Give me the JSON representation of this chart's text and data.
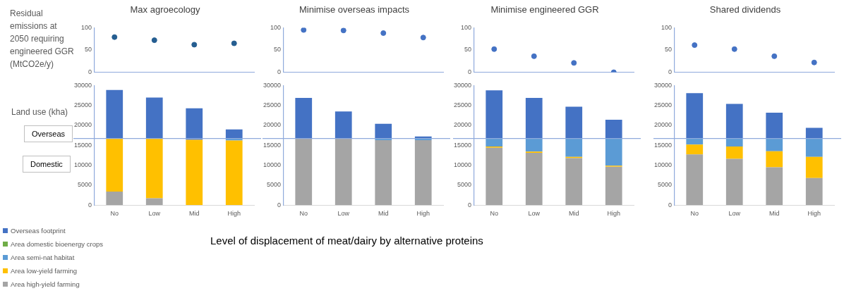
{
  "chart_data": [
    {
      "type": "scatter",
      "title": "Max agroecology",
      "ylabel": "Residual emissions at 2050 requiring engineered GGR (MtCO2e/y)",
      "categories": [
        null,
        null,
        null,
        null
      ],
      "series": [
        {
          "color": "#255e91",
          "values": [
            79,
            72,
            62,
            65
          ]
        }
      ],
      "ylim": [
        0,
        100
      ],
      "yticks": [
        0,
        50,
        100
      ],
      "marker": "circle",
      "tick_labels": "y"
    },
    {
      "type": "scatter",
      "title": "Minimise overseas impacts",
      "categories": [
        null,
        null,
        null,
        null
      ],
      "series": [
        {
          "color": "#4472c4",
          "values": [
            95,
            94,
            88,
            78
          ]
        }
      ],
      "ylim": [
        0,
        100
      ],
      "yticks": [
        0,
        50,
        100
      ],
      "marker": "circle",
      "tick_labels": "y"
    },
    {
      "type": "scatter",
      "title": "Minimise engineered GGR",
      "categories": [
        null,
        null,
        null,
        null
      ],
      "series": [
        {
          "color": "#4472c4",
          "values": [
            52,
            36,
            21,
            0
          ]
        }
      ],
      "ylim": [
        0,
        100
      ],
      "yticks": [
        0,
        50,
        100
      ],
      "marker": "circle",
      "tick_labels": "y"
    },
    {
      "type": "scatter",
      "title": "Shared dividends",
      "categories": [
        null,
        null,
        null,
        null
      ],
      "series": [
        {
          "color": "#4472c4",
          "values": [
            61,
            52,
            36,
            22
          ]
        }
      ],
      "ylim": [
        0,
        100
      ],
      "yticks": [
        0,
        50,
        100
      ],
      "marker": "circle",
      "tick_labels": "y"
    },
    {
      "type": "bar",
      "ylabel": "Land use (kha)",
      "xlabel": "Level of displacement of meat/dairy by alternative proteins",
      "annotations": [
        "Overseas",
        "Domestic"
      ],
      "categories": [
        "No",
        "Low",
        "Mid",
        "High"
      ],
      "stacked": true,
      "legend": "bottom left",
      "ylim": [
        0,
        30000
      ],
      "yticks": [
        0,
        5000,
        10000,
        15000,
        20000,
        25000,
        30000
      ],
      "ref_lines": [
        {
          "axis": "y",
          "value": 16700,
          "color": "#8faadc"
        }
      ],
      "series": [
        {
          "name": "Area high-yield farming",
          "color": "#a5a5a5",
          "values": [
            3400,
            1700,
            0,
            0
          ]
        },
        {
          "name": "Area low-yield farming",
          "color": "#ffc000",
          "values": [
            13300,
            15000,
            16400,
            16200
          ]
        },
        {
          "name": "Area semi-nat habitat",
          "color": "#5b9bd5",
          "values": [
            0,
            0,
            null,
            500
          ]
        },
        {
          "name": "Area domestic bioenergy crops",
          "color": "#70ad47",
          "values": [
            0,
            0,
            0,
            0
          ]
        },
        {
          "name": "Overseas footprint",
          "color": "#4472c4",
          "values": [
            12200,
            10300,
            7900,
            2300
          ]
        }
      ]
    },
    {
      "type": "bar",
      "categories": [
        "No",
        "Low",
        "Mid",
        "High"
      ],
      "stacked": true,
      "ylim": [
        0,
        30000
      ],
      "yticks": [
        0,
        5000,
        10000,
        15000,
        20000,
        25000,
        30000
      ],
      "ref_lines": [
        {
          "axis": "y",
          "value": 16700,
          "color": "#8faadc"
        }
      ],
      "series": [
        {
          "color": "#a5a5a5",
          "values": [
            16700,
            16700,
            16300,
            16300
          ]
        },
        {
          "color": "#ffc000",
          "values": [
            0,
            0,
            0,
            0
          ]
        },
        {
          "color": "#5b9bd5",
          "values": [
            0,
            0,
            400,
            400
          ]
        },
        {
          "color": "#70ad47",
          "values": [
            0,
            0,
            0,
            0
          ]
        },
        {
          "color": "#4472c4",
          "values": [
            10200,
            6800,
            3700,
            500
          ]
        }
      ]
    },
    {
      "type": "bar",
      "categories": [
        "No",
        "Low",
        "Mid",
        "High"
      ],
      "stacked": true,
      "ylim": [
        0,
        30000
      ],
      "yticks": [
        0,
        5000,
        10000,
        15000,
        20000,
        25000,
        30000
      ],
      "ref_lines": [
        {
          "axis": "y",
          "value": 16700,
          "color": "#8faadc"
        }
      ],
      "series": [
        {
          "color": "#a5a5a5",
          "values": [
            14400,
            13100,
            11800,
            9600
          ]
        },
        {
          "color": "#ffc000",
          "values": [
            300,
            300,
            300,
            300
          ]
        },
        {
          "color": "#5b9bd5",
          "values": [
            2000,
            3300,
            4600,
            6800
          ]
        },
        {
          "color": "#70ad47",
          "values": [
            0,
            0,
            0,
            0
          ]
        },
        {
          "color": "#4472c4",
          "values": [
            12100,
            10200,
            8000,
            4700
          ]
        }
      ]
    },
    {
      "type": "bar",
      "categories": [
        "No",
        "Low",
        "Mid",
        "High"
      ],
      "stacked": true,
      "ylim": [
        0,
        30000
      ],
      "yticks": [
        0,
        5000,
        10000,
        15000,
        20000,
        25000,
        30000
      ],
      "ref_lines": [
        {
          "axis": "y",
          "value": 16700,
          "color": "#8faadc"
        }
      ],
      "series": [
        {
          "color": "#a5a5a5",
          "values": [
            12700,
            11600,
            9500,
            6800
          ]
        },
        {
          "color": "#ffc000",
          "values": [
            2500,
            3100,
            4000,
            5300
          ]
        },
        {
          "color": "#5b9bd5",
          "values": [
            1500,
            2000,
            3200,
            4600
          ]
        },
        {
          "color": "#70ad47",
          "values": [
            0,
            0,
            0,
            0
          ]
        },
        {
          "color": "#4472c4",
          "values": [
            11400,
            8700,
            6500,
            2700
          ]
        }
      ]
    }
  ]
}
